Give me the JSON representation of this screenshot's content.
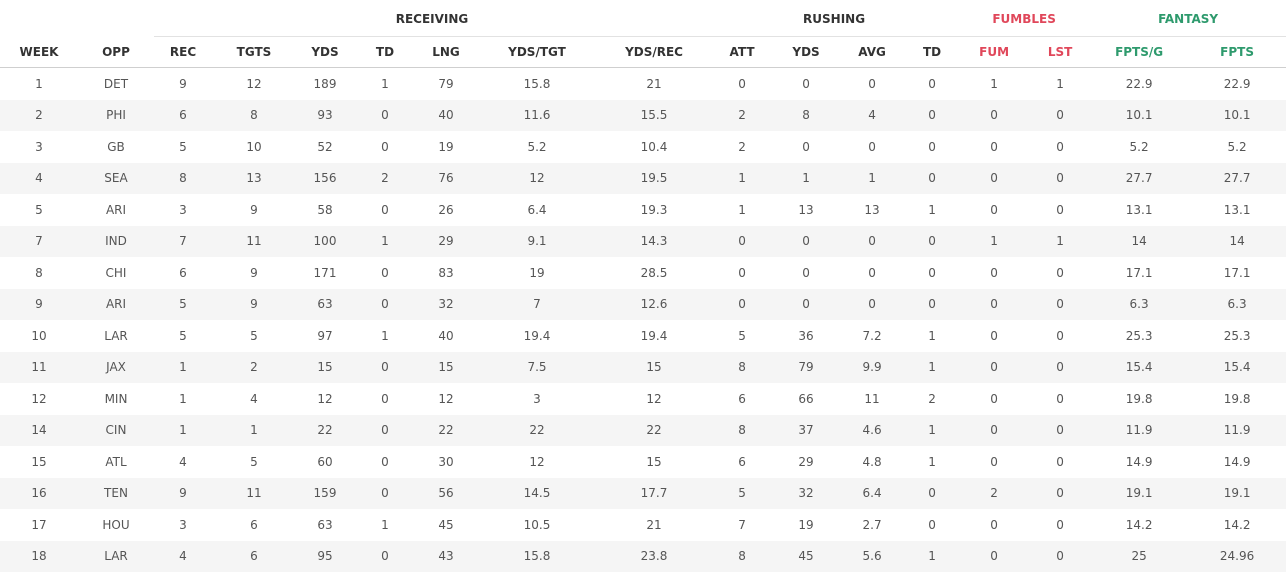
{
  "groups": {
    "receiving": "RECEIVING",
    "rushing": "RUSHING",
    "fumbles": "FUMBLES",
    "fantasy": "FANTASY"
  },
  "columns": [
    "WEEK",
    "OPP",
    "REC",
    "TGTS",
    "YDS",
    "TD",
    "LNG",
    "YDS/TGT",
    "YDS/REC",
    "ATT",
    "YDS",
    "AVG",
    "TD",
    "FUM",
    "LST",
    "FPTS/G",
    "FPTS"
  ],
  "rows": [
    [
      "1",
      "DET",
      "9",
      "12",
      "189",
      "1",
      "79",
      "15.8",
      "21",
      "0",
      "0",
      "0",
      "0",
      "1",
      "1",
      "22.9",
      "22.9"
    ],
    [
      "2",
      "PHI",
      "6",
      "8",
      "93",
      "0",
      "40",
      "11.6",
      "15.5",
      "2",
      "8",
      "4",
      "0",
      "0",
      "0",
      "10.1",
      "10.1"
    ],
    [
      "3",
      "GB",
      "5",
      "10",
      "52",
      "0",
      "19",
      "5.2",
      "10.4",
      "2",
      "0",
      "0",
      "0",
      "0",
      "0",
      "5.2",
      "5.2"
    ],
    [
      "4",
      "SEA",
      "8",
      "13",
      "156",
      "2",
      "76",
      "12",
      "19.5",
      "1",
      "1",
      "1",
      "0",
      "0",
      "0",
      "27.7",
      "27.7"
    ],
    [
      "5",
      "ARI",
      "3",
      "9",
      "58",
      "0",
      "26",
      "6.4",
      "19.3",
      "1",
      "13",
      "13",
      "1",
      "0",
      "0",
      "13.1",
      "13.1"
    ],
    [
      "7",
      "IND",
      "7",
      "11",
      "100",
      "1",
      "29",
      "9.1",
      "14.3",
      "0",
      "0",
      "0",
      "0",
      "1",
      "1",
      "14",
      "14"
    ],
    [
      "8",
      "CHI",
      "6",
      "9",
      "171",
      "0",
      "83",
      "19",
      "28.5",
      "0",
      "0",
      "0",
      "0",
      "0",
      "0",
      "17.1",
      "17.1"
    ],
    [
      "9",
      "ARI",
      "5",
      "9",
      "63",
      "0",
      "32",
      "7",
      "12.6",
      "0",
      "0",
      "0",
      "0",
      "0",
      "0",
      "6.3",
      "6.3"
    ],
    [
      "10",
      "LAR",
      "5",
      "5",
      "97",
      "1",
      "40",
      "19.4",
      "19.4",
      "5",
      "36",
      "7.2",
      "1",
      "0",
      "0",
      "25.3",
      "25.3"
    ],
    [
      "11",
      "JAX",
      "1",
      "2",
      "15",
      "0",
      "15",
      "7.5",
      "15",
      "8",
      "79",
      "9.9",
      "1",
      "0",
      "0",
      "15.4",
      "15.4"
    ],
    [
      "12",
      "MIN",
      "1",
      "4",
      "12",
      "0",
      "12",
      "3",
      "12",
      "6",
      "66",
      "11",
      "2",
      "0",
      "0",
      "19.8",
      "19.8"
    ],
    [
      "14",
      "CIN",
      "1",
      "1",
      "22",
      "0",
      "22",
      "22",
      "22",
      "8",
      "37",
      "4.6",
      "1",
      "0",
      "0",
      "11.9",
      "11.9"
    ],
    [
      "15",
      "ATL",
      "4",
      "5",
      "60",
      "0",
      "30",
      "12",
      "15",
      "6",
      "29",
      "4.8",
      "1",
      "0",
      "0",
      "14.9",
      "14.9"
    ],
    [
      "16",
      "TEN",
      "9",
      "11",
      "159",
      "0",
      "56",
      "14.5",
      "17.7",
      "5",
      "32",
      "6.4",
      "0",
      "2",
      "0",
      "19.1",
      "19.1"
    ],
    [
      "17",
      "HOU",
      "3",
      "6",
      "63",
      "1",
      "45",
      "10.5",
      "21",
      "7",
      "19",
      "2.7",
      "0",
      "0",
      "0",
      "14.2",
      "14.2"
    ],
    [
      "18",
      "LAR",
      "4",
      "6",
      "95",
      "0",
      "43",
      "15.8",
      "23.8",
      "8",
      "45",
      "5.6",
      "1",
      "0",
      "0",
      "25",
      "24.96"
    ]
  ]
}
